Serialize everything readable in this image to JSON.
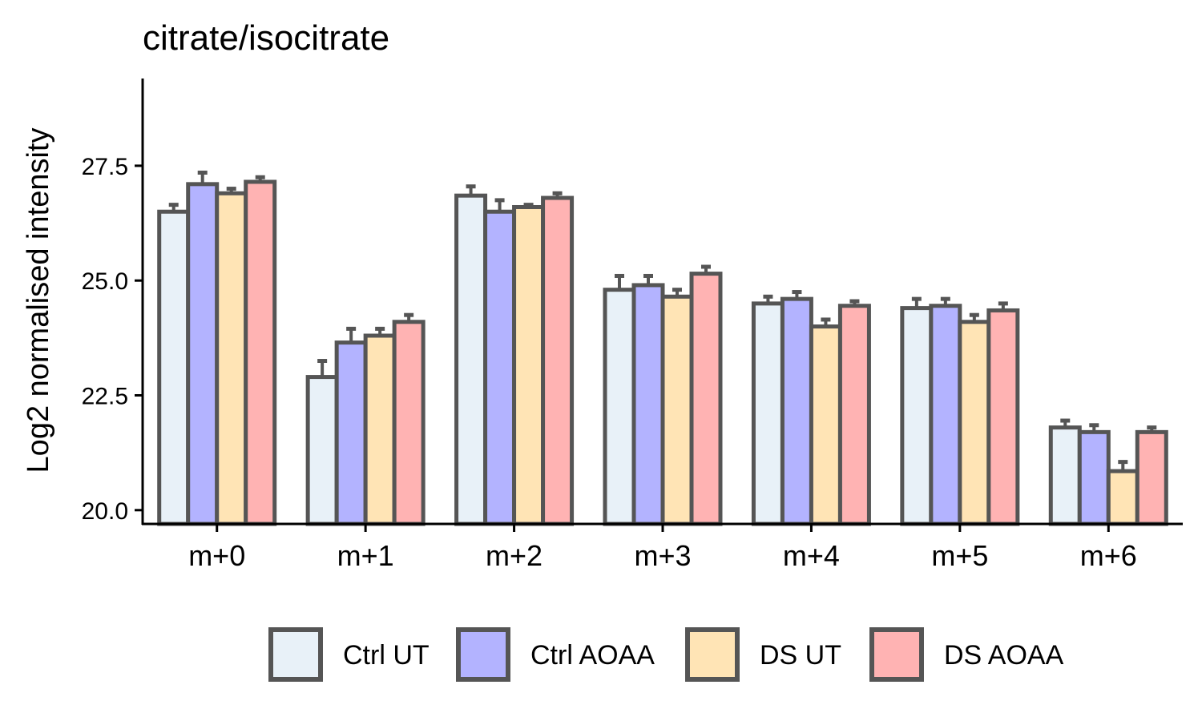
{
  "chart_data": {
    "type": "bar",
    "title": "citrate/isocitrate",
    "xlabel": "",
    "ylabel": "Log2 normalised intensity",
    "ylim": [
      19.7,
      29.4
    ],
    "yticks": [
      "20.0",
      "22.5",
      "25.0",
      "27.5"
    ],
    "categories": [
      "m+0",
      "m+1",
      "m+2",
      "m+3",
      "m+4",
      "m+5",
      "m+6"
    ],
    "series": [
      {
        "name": "Ctrl UT",
        "color": "#E8F1F8",
        "values": [
          26.5,
          22.9,
          26.85,
          24.8,
          24.5,
          24.4,
          21.8
        ],
        "errors": [
          0.15,
          0.35,
          0.2,
          0.3,
          0.15,
          0.2,
          0.15
        ]
      },
      {
        "name": "Ctrl AOAA",
        "color": "#B3B3FF",
        "values": [
          27.1,
          23.65,
          26.5,
          24.9,
          24.6,
          24.45,
          21.7
        ],
        "errors": [
          0.25,
          0.3,
          0.25,
          0.2,
          0.15,
          0.15,
          0.15
        ]
      },
      {
        "name": "DS UT",
        "color": "#FFE4B5",
        "values": [
          26.9,
          23.8,
          26.6,
          24.65,
          24.0,
          24.1,
          20.85
        ],
        "errors": [
          0.1,
          0.15,
          0.05,
          0.15,
          0.15,
          0.15,
          0.2
        ]
      },
      {
        "name": "DS AOAA",
        "color": "#FFB3B3",
        "values": [
          27.15,
          24.1,
          26.8,
          25.15,
          24.45,
          24.35,
          21.7
        ],
        "errors": [
          0.1,
          0.15,
          0.1,
          0.15,
          0.1,
          0.15,
          0.1
        ]
      }
    ],
    "grid": false,
    "legend_position": "bottom",
    "bar_border_color": "#555555"
  }
}
